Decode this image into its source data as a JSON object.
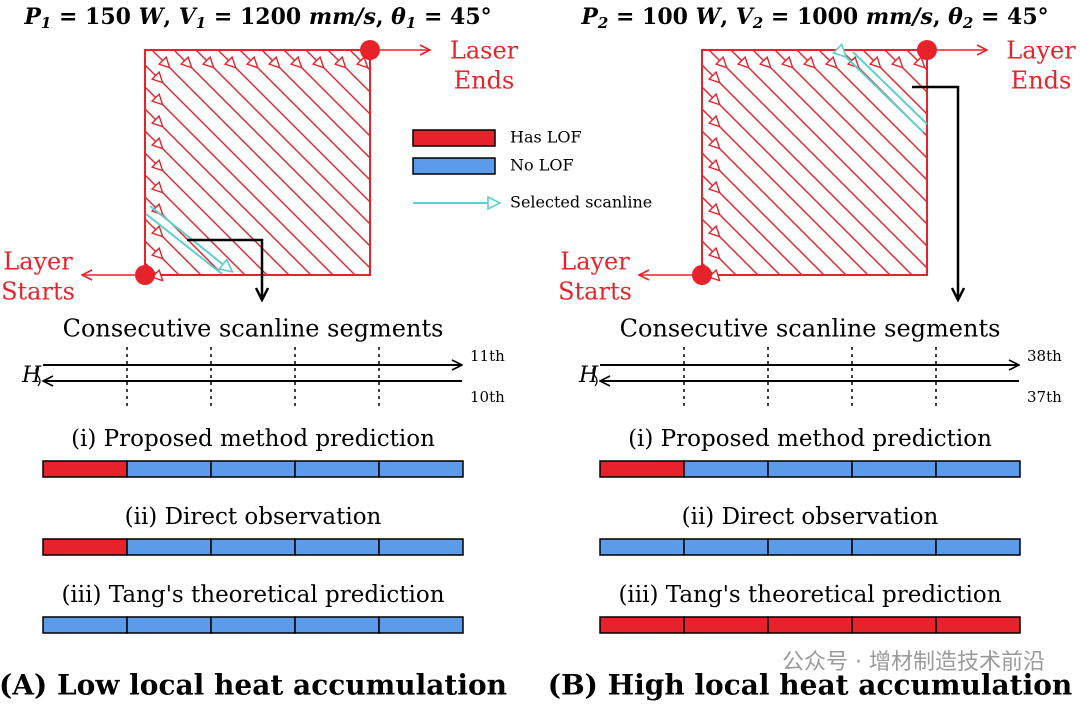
{
  "legend": [
    {
      "label": "Has LOF",
      "color": "#e8222a"
    },
    {
      "label": "No LOF",
      "color": "#5b9bea"
    },
    {
      "label": "Selected scanline",
      "color": "#5ecfcf"
    }
  ],
  "panels": [
    {
      "header": [
        {
          "text": "P",
          "style": "i"
        },
        {
          "text": "1",
          "style": "sub"
        },
        {
          "text": " = 150 ",
          "style": "n"
        },
        {
          "text": "W",
          "style": "i"
        },
        {
          "text": ", ",
          "style": "n"
        },
        {
          "text": "V",
          "style": "i"
        },
        {
          "text": "1",
          "style": "sub"
        },
        {
          "text": " = 1200 ",
          "style": "n"
        },
        {
          "text": "mm/s",
          "style": "i"
        },
        {
          "text": ", ",
          "style": "n"
        },
        {
          "text": "θ",
          "style": "i"
        },
        {
          "text": "1",
          "style": "sub"
        },
        {
          "text": " = 45°",
          "style": "n"
        }
      ],
      "start_label": [
        "Layer",
        "Starts"
      ],
      "end_label": [
        "Laser",
        "Ends"
      ],
      "segments_title": "Consecutive scanline segments",
      "h_label": "H",
      "upper_scanline": "11th",
      "lower_scanline": "10th",
      "rows": [
        {
          "label": "(i) Proposed method prediction",
          "segments": [
            "#e8222a",
            "#5b9bea",
            "#5b9bea",
            "#5b9bea",
            "#5b9bea"
          ]
        },
        {
          "label": "(ii) Direct observation",
          "segments": [
            "#e8222a",
            "#5b9bea",
            "#5b9bea",
            "#5b9bea",
            "#5b9bea"
          ]
        },
        {
          "label": "(iii) Tang's theoretical prediction",
          "segments": [
            "#5b9bea",
            "#5b9bea",
            "#5b9bea",
            "#5b9bea",
            "#5b9bea"
          ]
        }
      ],
      "caption": "(A) Low local heat accumulation"
    },
    {
      "header": [
        {
          "text": "P",
          "style": "i"
        },
        {
          "text": "2",
          "style": "sub"
        },
        {
          "text": " = 100 ",
          "style": "n"
        },
        {
          "text": "W",
          "style": "i"
        },
        {
          "text": ", ",
          "style": "n"
        },
        {
          "text": "V",
          "style": "i"
        },
        {
          "text": "2",
          "style": "sub"
        },
        {
          "text": " = 1000 ",
          "style": "n"
        },
        {
          "text": "mm/s",
          "style": "i"
        },
        {
          "text": ", ",
          "style": "n"
        },
        {
          "text": "θ",
          "style": "i"
        },
        {
          "text": "2",
          "style": "sub"
        },
        {
          "text": " = 45°",
          "style": "n"
        }
      ],
      "start_label": [
        "Layer",
        "Starts"
      ],
      "end_label": [
        "Layer",
        "Ends"
      ],
      "segments_title": "Consecutive scanline segments",
      "h_label": "H",
      "upper_scanline": "38th",
      "lower_scanline": "37th",
      "rows": [
        {
          "label": "(i) Proposed method prediction",
          "segments": [
            "#e8222a",
            "#5b9bea",
            "#5b9bea",
            "#5b9bea",
            "#5b9bea"
          ]
        },
        {
          "label": "(ii) Direct observation",
          "segments": [
            "#5b9bea",
            "#5b9bea",
            "#5b9bea",
            "#5b9bea",
            "#5b9bea"
          ]
        },
        {
          "label": "(iii) Tang's theoretical prediction",
          "segments": [
            "#e8222a",
            "#e8222a",
            "#e8222a",
            "#e8222a",
            "#e8222a"
          ]
        }
      ],
      "caption": "(B) High local heat accumulation"
    }
  ],
  "watermark": "公众号 · 增材制造技术前沿"
}
